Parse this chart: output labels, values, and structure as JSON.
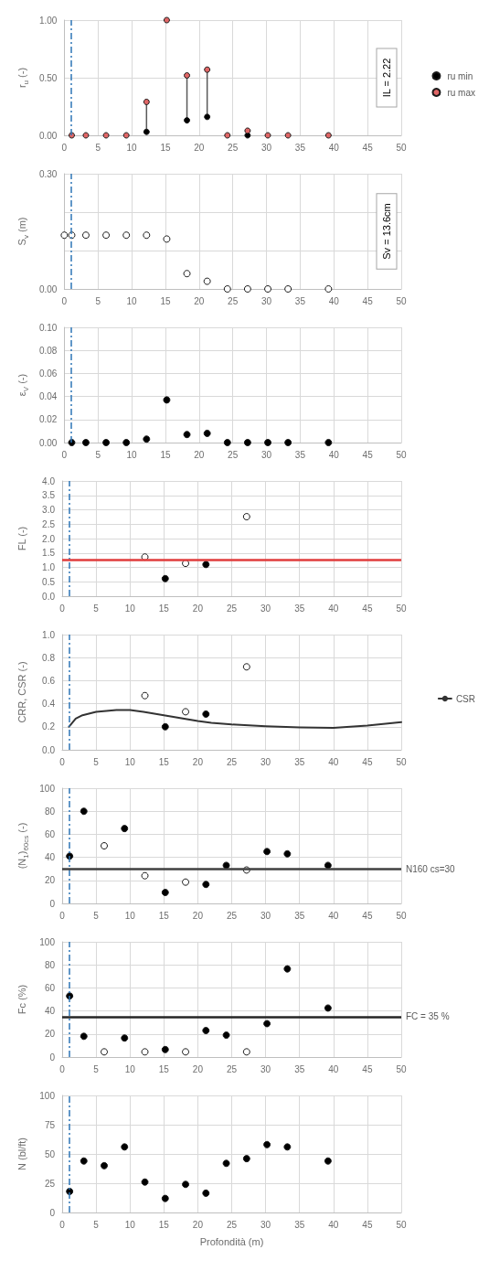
{
  "chart_data": [
    {
      "type": "scatter",
      "ylabel": "r$_{u}$ (-)",
      "x": [
        1.1,
        3.2,
        6.2,
        9.2,
        12.2,
        15.2,
        18.2,
        21.2,
        24.2,
        27.2,
        30.2,
        33.2,
        39.2
      ],
      "xlim": [
        0,
        50
      ],
      "xticks": [
        0,
        5,
        10,
        15,
        20,
        25,
        30,
        35,
        40,
        45,
        50
      ],
      "ylim": [
        0,
        1
      ],
      "yticks": [
        {
          "value": 0,
          "label": "0.00"
        },
        {
          "value": 0.5,
          "label": "0.50"
        },
        {
          "value": 1,
          "label": "1.00"
        }
      ],
      "grid": true,
      "legend": "right",
      "marker": "circle",
      "annotations": [
        "IL = 2.22"
      ],
      "ref_lines": [
        {
          "axis": "x",
          "value": 1,
          "color": "#2e75b6",
          "line_style": "dashed"
        }
      ],
      "series": [
        {
          "name": "ru min",
          "color": "#000000",
          "values": [
            null,
            null,
            null,
            null,
            0.03,
            null,
            0.13,
            0.16,
            null,
            0,
            null,
            null,
            null
          ]
        },
        {
          "name": "ru max",
          "color": "#e06666",
          "values": [
            0,
            0,
            0,
            0,
            0.29,
            1.0,
            0.52,
            0.57,
            0,
            0.04,
            0,
            0,
            0
          ],
          "errors": [
            null,
            null,
            null,
            null,
            [
              0.03,
              0.29
            ],
            null,
            [
              0.13,
              0.52
            ],
            [
              0.16,
              0.57
            ],
            null,
            [
              0,
              0.04
            ],
            null,
            null,
            null
          ]
        }
      ]
    },
    {
      "type": "scatter",
      "ylabel": "S$_{v}$ (m)",
      "xlim": [
        0,
        50
      ],
      "xticks": [
        0,
        5,
        10,
        15,
        20,
        25,
        30,
        35,
        40,
        45,
        50
      ],
      "ylim": [
        0,
        0.3
      ],
      "yticks": [
        {
          "value": 0,
          "label": "0.00"
        },
        {
          "value": 0.1,
          "label": null
        },
        {
          "value": 0.2,
          "label": null
        },
        {
          "value": 0.3,
          "label": "0.30"
        }
      ],
      "grid": true,
      "marker": "circle",
      "annotations": [
        "Sv = 13.6cm"
      ],
      "ref_lines": [
        {
          "axis": "x",
          "value": 1,
          "color": "#2e75b6",
          "line_style": "dashed"
        }
      ],
      "series": [
        {
          "color": "#ffffff",
          "x": [
            0,
            1.1,
            3.2,
            6.2,
            9.2,
            12.2,
            15.2,
            18.2,
            21.2,
            24.2,
            27.2,
            30.2,
            33.2,
            39.2
          ],
          "values": [
            0.14,
            0.14,
            0.14,
            0.14,
            0.14,
            0.14,
            0.13,
            0.04,
            0.02,
            0,
            0,
            0,
            0,
            0
          ]
        }
      ]
    },
    {
      "type": "scatter",
      "ylabel": "ε$_{V}$ (-)",
      "x": [
        1.1,
        3.2,
        6.2,
        9.2,
        12.2,
        15.2,
        18.2,
        21.2,
        24.2,
        27.2,
        30.2,
        33.2,
        39.2
      ],
      "xlim": [
        0,
        50
      ],
      "xticks": [
        0,
        5,
        10,
        15,
        20,
        25,
        30,
        35,
        40,
        45,
        50
      ],
      "ylim": [
        0,
        0.1
      ],
      "yticks": [
        {
          "value": 0,
          "label": "0.00"
        },
        {
          "value": 0.02,
          "label": "0.02"
        },
        {
          "value": 0.04,
          "label": "0.04"
        },
        {
          "value": 0.06,
          "label": "0.06"
        },
        {
          "value": 0.08,
          "label": "0.08"
        },
        {
          "value": 0.1,
          "label": "0.10"
        }
      ],
      "grid": true,
      "marker": "circle",
      "ref_lines": [
        {
          "axis": "x",
          "value": 1,
          "color": "#2e75b6",
          "line_style": "dashed"
        }
      ],
      "series": [
        {
          "color": "#000000",
          "values": [
            0,
            0,
            0,
            0,
            0.003,
            0.037,
            0.007,
            0.008,
            0,
            0,
            0,
            0,
            0
          ]
        }
      ]
    },
    {
      "type": "scatter",
      "ylabel": "FL (-)",
      "xlim": [
        0,
        50
      ],
      "xticks": [
        0,
        5,
        10,
        15,
        20,
        25,
        30,
        35,
        40,
        45,
        50
      ],
      "ylim": [
        0,
        4
      ],
      "yticks": [
        {
          "value": 0,
          "label": "0.0"
        },
        {
          "value": 0.5,
          "label": "0.5"
        },
        {
          "value": 1,
          "label": "1.0"
        },
        {
          "value": 1.5,
          "label": "1.5"
        },
        {
          "value": 2,
          "label": "2.0"
        },
        {
          "value": 2.5,
          "label": "2.5"
        },
        {
          "value": 3,
          "label": "3.0"
        },
        {
          "value": 3.5,
          "label": "3.5"
        },
        {
          "value": 4,
          "label": "4.0"
        }
      ],
      "grid": true,
      "marker": "circle",
      "ref_lines": [
        {
          "axis": "x",
          "value": 1,
          "color": "#2e75b6",
          "line_style": "dashed"
        },
        {
          "axis": "y",
          "value": 1.25,
          "color": "#e03c3c",
          "line_style": "solid"
        }
      ],
      "series": [
        {
          "color": "#000000",
          "x": [
            15.2,
            21.2
          ],
          "values": [
            0.61,
            1.1
          ]
        },
        {
          "color": "#ffffff",
          "x": [
            12.2,
            18.2,
            27.2
          ],
          "values": [
            1.36,
            1.14,
            2.76
          ]
        }
      ]
    },
    {
      "type": "scatter",
      "ylabel": "CRR, CSR (-)",
      "xlim": [
        0,
        50
      ],
      "xticks": [
        0,
        5,
        10,
        15,
        20,
        25,
        30,
        35,
        40,
        45,
        50
      ],
      "ylim": [
        0,
        1
      ],
      "yticks": [
        {
          "value": 0,
          "label": "0.0"
        },
        {
          "value": 0.2,
          "label": "0.2"
        },
        {
          "value": 0.4,
          "label": "0.4"
        },
        {
          "value": 0.6,
          "label": "0.6"
        },
        {
          "value": 0.8,
          "label": "0.8"
        },
        {
          "value": 1,
          "label": "1.0"
        }
      ],
      "grid": true,
      "legend": "right",
      "marker": "circle",
      "ref_lines": [
        {
          "axis": "x",
          "value": 1,
          "color": "#2e75b6",
          "line_style": "dashed"
        }
      ],
      "series": [
        {
          "color": "#ffffff",
          "x": [
            12.2,
            18.2,
            27.2
          ],
          "values": [
            0.47,
            0.33,
            0.72
          ]
        },
        {
          "color": "#000000",
          "x": [
            15.2,
            21.2
          ],
          "values": [
            0.2,
            0.31
          ]
        },
        {
          "name": "CSR",
          "type": "line",
          "color": "#333333",
          "line_style": "solid",
          "marker": "none",
          "x": [
            1,
            2,
            3,
            5,
            8,
            10,
            12,
            15,
            18,
            20,
            22,
            25,
            30,
            35,
            40,
            45,
            50
          ],
          "values": [
            0.2,
            0.27,
            0.3,
            0.33,
            0.345,
            0.345,
            0.33,
            0.3,
            0.27,
            0.25,
            0.235,
            0.22,
            0.205,
            0.195,
            0.19,
            0.21,
            0.24
          ]
        }
      ]
    },
    {
      "type": "scatter",
      "ylabel": "(N$_{1}$)$_{60cs}$ (-)",
      "xlim": [
        0,
        50
      ],
      "xticks": [
        0,
        5,
        10,
        15,
        20,
        25,
        30,
        35,
        40,
        45,
        50
      ],
      "ylim": [
        0,
        100
      ],
      "yticks": [
        0,
        20,
        40,
        60,
        80,
        100
      ],
      "grid": true,
      "marker": "circle",
      "ref_lines": [
        {
          "axis": "x",
          "value": 1,
          "color": "#2e75b6",
          "line_style": "dashed"
        },
        {
          "axis": "y",
          "value": 30,
          "label": "N160 cs=30",
          "color": "#404040",
          "line_style": "solid"
        }
      ],
      "series": [
        {
          "color": "#000000",
          "x": [
            1.1,
            3.2,
            9.2,
            15.2,
            21.2,
            24.2,
            30.2,
            33.2,
            39.2
          ],
          "values": [
            41,
            80,
            65,
            9.5,
            16.5,
            33,
            45,
            43,
            33
          ]
        },
        {
          "color": "#ffffff",
          "x": [
            6.2,
            12.2,
            18.2,
            27.2
          ],
          "values": [
            50,
            24,
            18.5,
            29
          ]
        }
      ]
    },
    {
      "type": "scatter",
      "ylabel": "Fc (%)",
      "xlim": [
        0,
        50
      ],
      "xticks": [
        0,
        5,
        10,
        15,
        20,
        25,
        30,
        35,
        40,
        45,
        50
      ],
      "ylim": [
        0,
        100
      ],
      "yticks": [
        0,
        20,
        40,
        60,
        80,
        100
      ],
      "grid": true,
      "marker": "circle",
      "ref_lines": [
        {
          "axis": "x",
          "value": 1,
          "color": "#2e75b6",
          "line_style": "dashed"
        },
        {
          "axis": "y",
          "value": 35,
          "label": "FC = 35 %",
          "color": "#262626",
          "line_style": "solid"
        }
      ],
      "series": [
        {
          "color": "#000000",
          "x": [
            1.1,
            3.2,
            9.2,
            15.2,
            21.2,
            24.2,
            30.2,
            33.2,
            39.2
          ],
          "values": [
            53,
            18,
            16.5,
            6.5,
            23,
            19,
            29,
            76.5,
            42.5
          ]
        },
        {
          "color": "#ffffff",
          "x": [
            6.2,
            12.2,
            18.2,
            27.2
          ],
          "values": [
            4.5,
            4.5,
            4.5,
            4.5
          ]
        }
      ]
    },
    {
      "type": "scatter",
      "ylabel": "N (bl/ft)",
      "xlabel": "Profondità (m)",
      "x": [
        1.1,
        3.2,
        6.2,
        9.2,
        12.2,
        15.2,
        18.2,
        21.2,
        24.2,
        27.2,
        30.2,
        33.2,
        39.2
      ],
      "xlim": [
        0,
        50
      ],
      "xticks": [
        0,
        5,
        10,
        15,
        20,
        25,
        30,
        35,
        40,
        45,
        50
      ],
      "ylim": [
        0,
        100
      ],
      "yticks": [
        0,
        25,
        50,
        75,
        100
      ],
      "grid": true,
      "marker": "circle",
      "ref_lines": [
        {
          "axis": "x",
          "value": 1,
          "color": "#2e75b6",
          "line_style": "dashed"
        }
      ],
      "series": [
        {
          "color": "#000000",
          "values": [
            18,
            44,
            40,
            56,
            26,
            12,
            24,
            16.5,
            42,
            46,
            58,
            56,
            44
          ]
        }
      ]
    }
  ]
}
